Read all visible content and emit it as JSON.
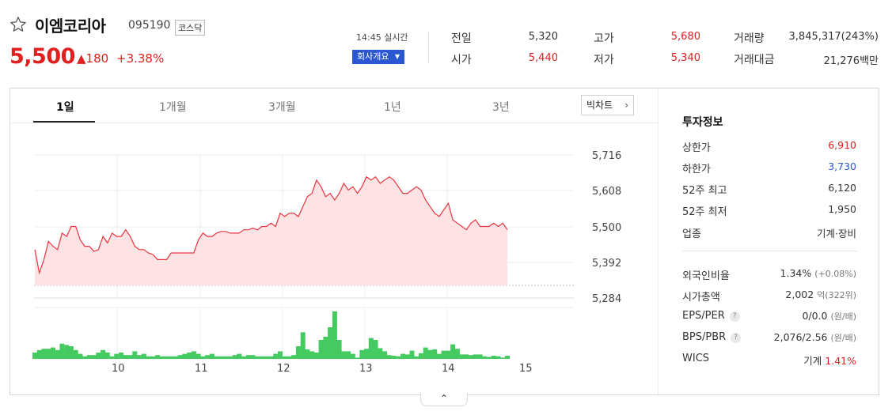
{
  "stock": {
    "name": "이엠코리아",
    "code": "095190",
    "market": "코스닥",
    "price": "5,500",
    "change": "▲180",
    "change_pct": "+3.38%",
    "realtime": "14:45 실시간",
    "company_button": "회사개요"
  },
  "quote": {
    "prev_close_label": "전일",
    "prev_close": "5,320",
    "high_label": "고가",
    "high": "5,680",
    "volume_label": "거래량",
    "volume": "3,845,317(243%)",
    "open_label": "시가",
    "open": "5,440",
    "low_label": "저가",
    "low": "5,340",
    "amount_label": "거래대금",
    "amount": "21,276백만"
  },
  "tabs": [
    "1일",
    "1개월",
    "3개월",
    "1년",
    "3년"
  ],
  "bigchart_button": "빅차트",
  "investment": {
    "title": "투자정보",
    "upper_limit_label": "상한가",
    "upper_limit": "6,910",
    "lower_limit_label": "하한가",
    "lower_limit": "3,730",
    "w52_high_label": "52주 최고",
    "w52_high": "6,120",
    "w52_low_label": "52주 최저",
    "w52_low": "1,950",
    "industry_label": "업종",
    "industry": "기계·장비",
    "foreign_label": "외국인비율",
    "foreign": "1.34%",
    "foreign_sub": "(+0.08%)",
    "market_cap_label": "시가총액",
    "market_cap": "2,002",
    "market_cap_sub": "억(322위)",
    "eps_label": "EPS/PER",
    "eps": "0/0.0",
    "eps_sub": "(원/배)",
    "bps_label": "BPS/PBR",
    "bps": "2,076/2.56",
    "bps_sub": "(원/배)",
    "wics_label": "WICS",
    "wics": "기계",
    "wics_pct": "1.41%"
  },
  "colors": {
    "up": "#e0201f",
    "down": "#2b57d1",
    "volume": "#45c961",
    "line": "#e8343f"
  },
  "chart_data": {
    "type": "line",
    "x_ticks": [
      "10",
      "11",
      "12",
      "13",
      "14",
      "15"
    ],
    "y_ticks": [
      "5,716",
      "5,608",
      "5,500",
      "5,392",
      "5,284"
    ],
    "ylim": [
      5284,
      5716
    ],
    "price_series": [
      5430,
      5360,
      5400,
      5455,
      5440,
      5430,
      5480,
      5470,
      5500,
      5500,
      5460,
      5440,
      5440,
      5425,
      5430,
      5470,
      5450,
      5480,
      5470,
      5470,
      5490,
      5470,
      5440,
      5430,
      5430,
      5420,
      5415,
      5400,
      5400,
      5400,
      5420,
      5420,
      5420,
      5420,
      5420,
      5420,
      5460,
      5480,
      5470,
      5470,
      5480,
      5485,
      5485,
      5480,
      5480,
      5480,
      5490,
      5490,
      5495,
      5490,
      5500,
      5500,
      5510,
      5500,
      5540,
      5530,
      5540,
      5540,
      5530,
      5560,
      5590,
      5600,
      5640,
      5620,
      5590,
      5600,
      5580,
      5600,
      5630,
      5610,
      5620,
      5600,
      5620,
      5650,
      5640,
      5650,
      5630,
      5640,
      5650,
      5640,
      5620,
      5600,
      5600,
      5610,
      5620,
      5610,
      5580,
      5560,
      5540,
      5530,
      5550,
      5570,
      5520,
      5510,
      5500,
      5490,
      5510,
      5520,
      5500,
      5500,
      5500,
      5510,
      5500,
      5510,
      5490
    ],
    "volume_series": [
      10,
      14,
      16,
      16,
      18,
      14,
      24,
      22,
      20,
      14,
      8,
      4,
      6,
      6,
      10,
      14,
      10,
      4,
      8,
      10,
      6,
      6,
      12,
      6,
      8,
      4,
      4,
      6,
      4,
      4,
      4,
      4,
      6,
      8,
      10,
      12,
      8,
      4,
      6,
      8,
      4,
      4,
      4,
      4,
      6,
      8,
      4,
      6,
      6,
      4,
      4,
      4,
      4,
      8,
      12,
      4,
      4,
      6,
      20,
      42,
      15,
      12,
      10,
      30,
      35,
      50,
      75,
      30,
      12,
      12,
      8,
      2,
      14,
      16,
      33,
      30,
      17,
      12,
      6,
      5,
      4,
      8,
      7,
      13,
      4,
      9,
      18,
      14,
      15,
      8,
      13,
      13,
      23,
      16,
      7,
      7,
      6,
      7,
      7,
      4,
      3,
      5,
      4,
      2,
      5
    ]
  }
}
